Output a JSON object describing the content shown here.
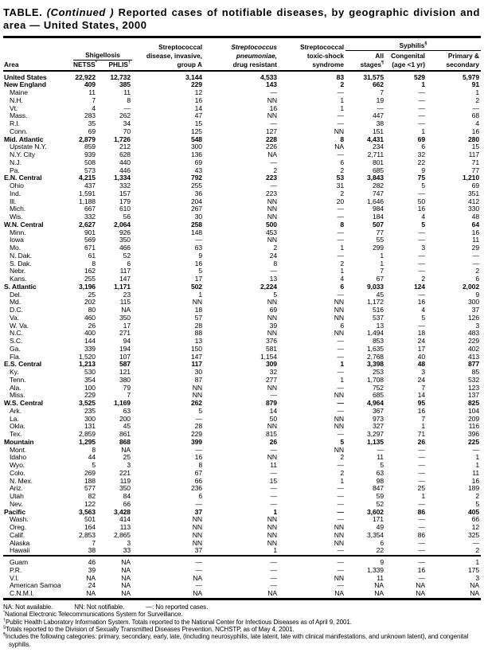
{
  "title": {
    "label": "TABLE.",
    "continued": "(Continued )",
    "rest": "Reported cases of notifiable diseases, by geographic division and area — United States, 2000"
  },
  "table": {
    "header": {
      "area": "Area",
      "shigellosis": "Shigellosis",
      "netss": {
        "label": "NETSS",
        "sup": "*"
      },
      "phlis": {
        "label": "PHLIS",
        "sup": "†"
      },
      "strep_a": {
        "l1": "Streptococcal",
        "l2": "disease, invasive,",
        "l3": "group A"
      },
      "strep_pneumo": {
        "l1": "Streptococcus",
        "l2": "pneumoniae,",
        "l3": "drug resistant"
      },
      "toxic_shock": {
        "l1": "Streptococcal",
        "l2": "toxic-shock",
        "l3": "syndrome"
      },
      "syphilis": {
        "label": "Syphilis",
        "sup": "§"
      },
      "all_stages": {
        "l1": "All",
        "l2": "stages",
        "sup": "¶"
      },
      "congenital": {
        "l1": "Congenital",
        "l2": "(age <1 yr)"
      },
      "primary_secondary": {
        "l1": "Primary &",
        "l2": "secondary"
      }
    },
    "rows": [
      {
        "area": "United States",
        "bold": true,
        "indent": false,
        "values": [
          "22,922",
          "12,732",
          "3,144",
          "4,533",
          "83",
          "31,575",
          "529",
          "5,979"
        ]
      },
      {
        "area": "New England",
        "bold": true,
        "indent": false,
        "values": [
          "409",
          "385",
          "229",
          "143",
          "2",
          "662",
          "1",
          "91"
        ]
      },
      {
        "area": "Maine",
        "bold": false,
        "indent": true,
        "values": [
          "11",
          "11",
          "12",
          "—",
          "—",
          "7",
          "—",
          "1"
        ]
      },
      {
        "area": "N.H.",
        "bold": false,
        "indent": true,
        "values": [
          "7",
          "8",
          "16",
          "NN",
          "1",
          "19",
          "—",
          "2"
        ]
      },
      {
        "area": "Vt.",
        "bold": false,
        "indent": true,
        "values": [
          "4",
          "—",
          "14",
          "16",
          "1",
          "—",
          "—",
          "—"
        ]
      },
      {
        "area": "Mass.",
        "bold": false,
        "indent": true,
        "values": [
          "283",
          "262",
          "47",
          "NN",
          "—",
          "447",
          "—",
          "68"
        ]
      },
      {
        "area": "R.I.",
        "bold": false,
        "indent": true,
        "values": [
          "35",
          "34",
          "15",
          "—",
          "—",
          "38",
          "—",
          "4"
        ]
      },
      {
        "area": "Conn.",
        "bold": false,
        "indent": true,
        "values": [
          "69",
          "70",
          "125",
          "127",
          "NN",
          "151",
          "1",
          "16"
        ]
      },
      {
        "area": "Mid. Atlantic",
        "bold": true,
        "indent": false,
        "values": [
          "2,879",
          "1,726",
          "548",
          "228",
          "8",
          "4,431",
          "69",
          "280"
        ]
      },
      {
        "area": "Upstate N.Y.",
        "bold": false,
        "indent": true,
        "values": [
          "859",
          "212",
          "300",
          "226",
          "NA",
          "234",
          "6",
          "15"
        ]
      },
      {
        "area": "N.Y. City",
        "bold": false,
        "indent": true,
        "values": [
          "939",
          "628",
          "136",
          "NA",
          "—",
          "2,711",
          "32",
          "117"
        ]
      },
      {
        "area": "N.J.",
        "bold": false,
        "indent": true,
        "values": [
          "508",
          "440",
          "69",
          "—",
          "6",
          "801",
          "22",
          "71"
        ]
      },
      {
        "area": "Pa.",
        "bold": false,
        "indent": true,
        "values": [
          "573",
          "446",
          "43",
          "2",
          "2",
          "685",
          "9",
          "77"
        ]
      },
      {
        "area": "E.N. Central",
        "bold": true,
        "indent": false,
        "values": [
          "4,215",
          "1,334",
          "792",
          "223",
          "53",
          "3,843",
          "75",
          "1,210"
        ]
      },
      {
        "area": "Ohio",
        "bold": false,
        "indent": true,
        "values": [
          "437",
          "332",
          "255",
          "—",
          "31",
          "282",
          "5",
          "69"
        ]
      },
      {
        "area": "Ind.",
        "bold": false,
        "indent": true,
        "values": [
          "1,591",
          "157",
          "36",
          "223",
          "2",
          "747",
          "—",
          "351"
        ]
      },
      {
        "area": "Ill.",
        "bold": false,
        "indent": true,
        "values": [
          "1,188",
          "179",
          "204",
          "NN",
          "20",
          "1,646",
          "50",
          "412"
        ]
      },
      {
        "area": "Mich.",
        "bold": false,
        "indent": true,
        "values": [
          "667",
          "610",
          "267",
          "NN",
          "—",
          "984",
          "16",
          "330"
        ]
      },
      {
        "area": "Wis.",
        "bold": false,
        "indent": true,
        "values": [
          "332",
          "56",
          "30",
          "NN",
          "—",
          "184",
          "4",
          "48"
        ]
      },
      {
        "area": "W.N. Central",
        "bold": true,
        "indent": false,
        "values": [
          "2,627",
          "2,064",
          "258",
          "500",
          "8",
          "507",
          "5",
          "64"
        ]
      },
      {
        "area": "Minn.",
        "bold": false,
        "indent": true,
        "values": [
          "901",
          "926",
          "148",
          "453",
          "—",
          "77",
          "—",
          "16"
        ]
      },
      {
        "area": "Iowa",
        "bold": false,
        "indent": true,
        "values": [
          "569",
          "350",
          "—",
          "NN",
          "—",
          "55",
          "—",
          "11"
        ]
      },
      {
        "area": "Mo.",
        "bold": false,
        "indent": true,
        "values": [
          "671",
          "466",
          "63",
          "2",
          "1",
          "299",
          "3",
          "29"
        ]
      },
      {
        "area": "N. Dak.",
        "bold": false,
        "indent": true,
        "values": [
          "61",
          "52",
          "9",
          "24",
          "—",
          "1",
          "—",
          "—"
        ]
      },
      {
        "area": "S. Dak.",
        "bold": false,
        "indent": true,
        "values": [
          "8",
          "6",
          "16",
          "8",
          "2",
          "1",
          "—",
          "—"
        ]
      },
      {
        "area": "Nebr.",
        "bold": false,
        "indent": true,
        "values": [
          "162",
          "117",
          "5",
          "—",
          "1",
          "7",
          "—",
          "2"
        ]
      },
      {
        "area": "Kans.",
        "bold": false,
        "indent": true,
        "values": [
          "255",
          "147",
          "17",
          "13",
          "4",
          "67",
          "2",
          "6"
        ]
      },
      {
        "area": "S. Atlantic",
        "bold": true,
        "indent": false,
        "values": [
          "3,196",
          "1,171",
          "502",
          "2,224",
          "6",
          "9,033",
          "124",
          "2,002"
        ]
      },
      {
        "area": "Del.",
        "bold": false,
        "indent": true,
        "values": [
          "25",
          "23",
          "1",
          "5",
          "—",
          "45",
          "—",
          "9"
        ]
      },
      {
        "area": "Md.",
        "bold": false,
        "indent": true,
        "values": [
          "202",
          "115",
          "NN",
          "NN",
          "NN",
          "1,172",
          "16",
          "300"
        ]
      },
      {
        "area": "D.C.",
        "bold": false,
        "indent": true,
        "values": [
          "80",
          "NA",
          "18",
          "69",
          "NN",
          "516",
          "4",
          "37"
        ]
      },
      {
        "area": "Va.",
        "bold": false,
        "indent": true,
        "values": [
          "460",
          "350",
          "57",
          "NN",
          "NN",
          "537",
          "5",
          "126"
        ]
      },
      {
        "area": "W. Va.",
        "bold": false,
        "indent": true,
        "values": [
          "26",
          "17",
          "28",
          "39",
          "6",
          "13",
          "—",
          "3"
        ]
      },
      {
        "area": "N.C.",
        "bold": false,
        "indent": true,
        "values": [
          "400",
          "271",
          "88",
          "NN",
          "NN",
          "1,494",
          "18",
          "483"
        ]
      },
      {
        "area": "S.C.",
        "bold": false,
        "indent": true,
        "values": [
          "144",
          "94",
          "13",
          "376",
          "—",
          "853",
          "24",
          "229"
        ]
      },
      {
        "area": "Ga.",
        "bold": false,
        "indent": true,
        "values": [
          "339",
          "194",
          "150",
          "581",
          "—",
          "1,635",
          "17",
          "402"
        ]
      },
      {
        "area": "Fla.",
        "bold": false,
        "indent": true,
        "values": [
          "1,520",
          "107",
          "147",
          "1,154",
          "—",
          "2,768",
          "40",
          "413"
        ]
      },
      {
        "area": "E.S. Central",
        "bold": true,
        "indent": false,
        "values": [
          "1,213",
          "587",
          "117",
          "309",
          "1",
          "3,398",
          "48",
          "877"
        ]
      },
      {
        "area": "Ky.",
        "bold": false,
        "indent": true,
        "values": [
          "530",
          "121",
          "30",
          "32",
          "—",
          "253",
          "3",
          "85"
        ]
      },
      {
        "area": "Tenn.",
        "bold": false,
        "indent": true,
        "values": [
          "354",
          "380",
          "87",
          "277",
          "1",
          "1,708",
          "24",
          "532"
        ]
      },
      {
        "area": "Ala.",
        "bold": false,
        "indent": true,
        "values": [
          "100",
          "79",
          "NN",
          "NN",
          "—",
          "752",
          "7",
          "123"
        ]
      },
      {
        "area": "Miss.",
        "bold": false,
        "indent": true,
        "values": [
          "229",
          "7",
          "NN",
          "—",
          "NN",
          "685",
          "14",
          "137"
        ]
      },
      {
        "area": "W.S. Central",
        "bold": true,
        "indent": false,
        "values": [
          "3,525",
          "1,169",
          "262",
          "879",
          "—",
          "4,964",
          "95",
          "825"
        ]
      },
      {
        "area": "Ark.",
        "bold": false,
        "indent": true,
        "values": [
          "235",
          "63",
          "5",
          "14",
          "—",
          "367",
          "16",
          "104"
        ]
      },
      {
        "area": "La.",
        "bold": false,
        "indent": true,
        "values": [
          "300",
          "200",
          "—",
          "50",
          "NN",
          "973",
          "7",
          "209"
        ]
      },
      {
        "area": "Okla.",
        "bold": false,
        "indent": true,
        "values": [
          "131",
          "45",
          "28",
          "NN",
          "NN",
          "327",
          "1",
          "116"
        ]
      },
      {
        "area": "Tex.",
        "bold": false,
        "indent": true,
        "values": [
          "2,859",
          "861",
          "229",
          "815",
          "—",
          "3,297",
          "71",
          "396"
        ]
      },
      {
        "area": "Mountain",
        "bold": true,
        "indent": false,
        "values": [
          "1,295",
          "868",
          "399",
          "26",
          "5",
          "1,135",
          "26",
          "225"
        ]
      },
      {
        "area": "Mont.",
        "bold": false,
        "indent": true,
        "values": [
          "8",
          "NA",
          "—",
          "—",
          "NN",
          "—",
          "—",
          "—"
        ]
      },
      {
        "area": "Idaho",
        "bold": false,
        "indent": true,
        "values": [
          "44",
          "25",
          "16",
          "NN",
          "2",
          "11",
          "—",
          "1"
        ]
      },
      {
        "area": "Wyo.",
        "bold": false,
        "indent": true,
        "values": [
          "5",
          "3",
          "8",
          "11",
          "—",
          "5",
          "—",
          "1"
        ]
      },
      {
        "area": "Colo.",
        "bold": false,
        "indent": true,
        "values": [
          "269",
          "221",
          "67",
          "—",
          "2",
          "63",
          "—",
          "11"
        ]
      },
      {
        "area": "N. Mex.",
        "bold": false,
        "indent": true,
        "values": [
          "188",
          "119",
          "66",
          "15",
          "1",
          "98",
          "—",
          "16"
        ]
      },
      {
        "area": "Ariz.",
        "bold": false,
        "indent": true,
        "values": [
          "577",
          "350",
          "236",
          "—",
          "—",
          "847",
          "25",
          "189"
        ]
      },
      {
        "area": "Utah",
        "bold": false,
        "indent": true,
        "values": [
          "82",
          "84",
          "6",
          "—",
          "—",
          "59",
          "1",
          "2"
        ]
      },
      {
        "area": "Nev.",
        "bold": false,
        "indent": true,
        "values": [
          "122",
          "66",
          "—",
          "—",
          "—",
          "52",
          "—",
          "5"
        ]
      },
      {
        "area": "Pacific",
        "bold": true,
        "indent": false,
        "values": [
          "3,563",
          "3,428",
          "37",
          "1",
          "—",
          "3,602",
          "86",
          "405"
        ]
      },
      {
        "area": "Wash.",
        "bold": false,
        "indent": true,
        "values": [
          "501",
          "414",
          "NN",
          "NN",
          "—",
          "171",
          "—",
          "66"
        ]
      },
      {
        "area": "Oreg.",
        "bold": false,
        "indent": true,
        "values": [
          "164",
          "113",
          "NN",
          "NN",
          "NN",
          "49",
          "—",
          "12"
        ]
      },
      {
        "area": "Calif.",
        "bold": false,
        "indent": true,
        "values": [
          "2,853",
          "2,865",
          "NN",
          "NN",
          "NN",
          "3,354",
          "86",
          "325"
        ]
      },
      {
        "area": "Alaska",
        "bold": false,
        "indent": true,
        "values": [
          "7",
          "3",
          "NN",
          "NN",
          "NN",
          "6",
          "—",
          "—"
        ]
      },
      {
        "area": "Hawaii",
        "bold": false,
        "indent": true,
        "values": [
          "38",
          "33",
          "37",
          "1",
          "—",
          "22",
          "—",
          "2"
        ]
      }
    ],
    "territory_rows": [
      {
        "area": "Guam",
        "bold": false,
        "indent": true,
        "values": [
          "46",
          "NA",
          "—",
          "—",
          "—",
          "9",
          "—",
          "1"
        ]
      },
      {
        "area": "P.R.",
        "bold": false,
        "indent": true,
        "values": [
          "39",
          "NA",
          "—",
          "—",
          "—",
          "1,339",
          "16",
          "175"
        ]
      },
      {
        "area": "V.I.",
        "bold": false,
        "indent": true,
        "values": [
          "NA",
          "NA",
          "NA",
          "—",
          "NN",
          "11",
          "—",
          "3"
        ]
      },
      {
        "area": "American Samoa",
        "bold": false,
        "indent": true,
        "values": [
          "24",
          "NA",
          "—",
          "—",
          "—",
          "NA",
          "NA",
          "NA"
        ]
      },
      {
        "area": "C.N.M.I.",
        "bold": false,
        "indent": true,
        "values": [
          "NA",
          "NA",
          "NA",
          "NA",
          "NA",
          "NA",
          "NA",
          "NA"
        ]
      }
    ]
  },
  "footnotes": {
    "legend": {
      "na": "NA: Not available.",
      "nn": "NN: Not notifiable.",
      "dash": "—: No reported cases."
    },
    "items": [
      {
        "sym": "*",
        "text": "National Electronic Telecommunications System for Surveillance."
      },
      {
        "sym": "†",
        "text": "Public Health Laboratory Information System. Totals reported to the National Center for Infectious Diseases as of April 9, 2001."
      },
      {
        "sym": "§",
        "text": "Totals reported to the Division of Sexually Transmitted Diseases Prevention, NCHSTP, as of May 4, 2001."
      },
      {
        "sym": "¶",
        "text": "Includes the following categories: primary, secondary, early, late, (including neurosyphilis, late latent, late with clinical manifestations, and unknown latent), and congenital syphilis."
      }
    ]
  }
}
